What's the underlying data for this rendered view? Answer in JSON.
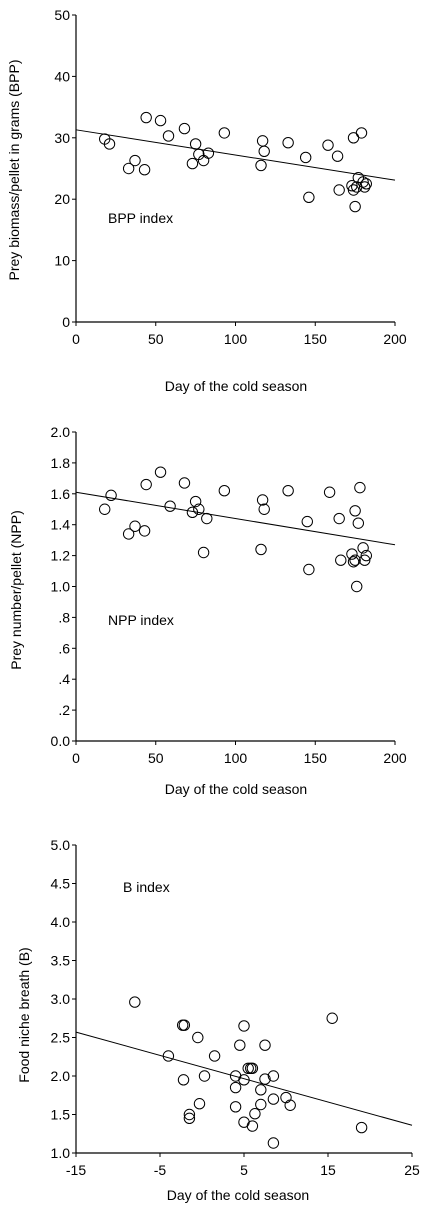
{
  "chart_data": [
    {
      "type": "scatter",
      "annotation": "BPP index",
      "xlabel": "Day of the cold season",
      "ylabel": "Prey biomass/pellet in grams (BPP)",
      "xlim": [
        0,
        200
      ],
      "ylim": [
        0,
        50
      ],
      "x_ticks": [
        "0",
        "50",
        "100",
        "150",
        "200"
      ],
      "y_ticks": [
        "0",
        "10",
        "20",
        "30",
        "40",
        "50"
      ],
      "grid": false,
      "points": [
        {
          "x": 18,
          "y": 29.8
        },
        {
          "x": 21,
          "y": 29.0
        },
        {
          "x": 33,
          "y": 25.0
        },
        {
          "x": 37,
          "y": 26.3
        },
        {
          "x": 43,
          "y": 24.8
        },
        {
          "x": 44,
          "y": 33.3
        },
        {
          "x": 53,
          "y": 32.8
        },
        {
          "x": 58,
          "y": 30.3
        },
        {
          "x": 68,
          "y": 31.5
        },
        {
          "x": 73,
          "y": 25.8
        },
        {
          "x": 75,
          "y": 29.0
        },
        {
          "x": 77,
          "y": 27.3
        },
        {
          "x": 80,
          "y": 26.3
        },
        {
          "x": 83,
          "y": 27.5
        },
        {
          "x": 93,
          "y": 30.8
        },
        {
          "x": 116,
          "y": 25.5
        },
        {
          "x": 117,
          "y": 29.5
        },
        {
          "x": 118,
          "y": 27.8
        },
        {
          "x": 133,
          "y": 29.2
        },
        {
          "x": 144,
          "y": 26.8
        },
        {
          "x": 146,
          "y": 20.3
        },
        {
          "x": 158,
          "y": 28.8
        },
        {
          "x": 164,
          "y": 27.0
        },
        {
          "x": 165,
          "y": 21.5
        },
        {
          "x": 173,
          "y": 22.2
        },
        {
          "x": 174,
          "y": 21.5
        },
        {
          "x": 174,
          "y": 30.0
        },
        {
          "x": 175,
          "y": 18.8
        },
        {
          "x": 176,
          "y": 22.0
        },
        {
          "x": 177,
          "y": 23.5
        },
        {
          "x": 179,
          "y": 30.8
        },
        {
          "x": 180,
          "y": 22.8
        },
        {
          "x": 181,
          "y": 22.0
        },
        {
          "x": 182,
          "y": 22.5
        }
      ],
      "trend_line": {
        "x": [
          0,
          200
        ],
        "y": [
          31.3,
          23.1
        ]
      }
    },
    {
      "type": "scatter",
      "annotation": "NPP index",
      "xlabel": "Day of the cold season",
      "ylabel": "Prey number/pellet (NPP)",
      "xlim": [
        0,
        200
      ],
      "ylim": [
        0,
        2.0
      ],
      "x_ticks": [
        "0",
        "50",
        "100",
        "150",
        "200"
      ],
      "y_ticks": [
        "0.0",
        ".2",
        ".4",
        ".6",
        ".8",
        "1.0",
        "1.2",
        "1.4",
        "1.6",
        "1.8",
        "2.0"
      ],
      "grid": false,
      "points": [
        {
          "x": 18,
          "y": 1.5
        },
        {
          "x": 22,
          "y": 1.59
        },
        {
          "x": 33,
          "y": 1.34
        },
        {
          "x": 37,
          "y": 1.39
        },
        {
          "x": 43,
          "y": 1.36
        },
        {
          "x": 44,
          "y": 1.66
        },
        {
          "x": 53,
          "y": 1.74
        },
        {
          "x": 59,
          "y": 1.52
        },
        {
          "x": 68,
          "y": 1.67
        },
        {
          "x": 73,
          "y": 1.48
        },
        {
          "x": 75,
          "y": 1.55
        },
        {
          "x": 77,
          "y": 1.5
        },
        {
          "x": 80,
          "y": 1.22
        },
        {
          "x": 82,
          "y": 1.44
        },
        {
          "x": 93,
          "y": 1.62
        },
        {
          "x": 116,
          "y": 1.24
        },
        {
          "x": 117,
          "y": 1.56
        },
        {
          "x": 118,
          "y": 1.5
        },
        {
          "x": 133,
          "y": 1.62
        },
        {
          "x": 145,
          "y": 1.42
        },
        {
          "x": 146,
          "y": 1.11
        },
        {
          "x": 159,
          "y": 1.61
        },
        {
          "x": 165,
          "y": 1.44
        },
        {
          "x": 166,
          "y": 1.17
        },
        {
          "x": 173,
          "y": 1.21
        },
        {
          "x": 174,
          "y": 1.16
        },
        {
          "x": 175,
          "y": 1.17
        },
        {
          "x": 175,
          "y": 1.49
        },
        {
          "x": 176,
          "y": 1.0
        },
        {
          "x": 177,
          "y": 1.41
        },
        {
          "x": 178,
          "y": 1.64
        },
        {
          "x": 180,
          "y": 1.25
        },
        {
          "x": 181,
          "y": 1.17
        },
        {
          "x": 182,
          "y": 1.2
        }
      ],
      "trend_line": {
        "x": [
          0,
          200
        ],
        "y": [
          1.61,
          1.27
        ]
      }
    },
    {
      "type": "scatter",
      "annotation": "B index",
      "xlabel": "Day of the cold season",
      "ylabel": "Food niche breath (B)",
      "xlim": [
        -15,
        25
      ],
      "ylim": [
        1.0,
        5.0
      ],
      "x_ticks": [
        "-15",
        "-5",
        "5",
        "15",
        "25"
      ],
      "y_ticks": [
        "1.0",
        "1.5",
        "2.0",
        "2.5",
        "3.0",
        "3.5",
        "4.0",
        "4.5",
        "5.0"
      ],
      "grid": false,
      "points": [
        {
          "x": -8,
          "y": 2.96
        },
        {
          "x": -4,
          "y": 2.26
        },
        {
          "x": -2.2,
          "y": 1.95
        },
        {
          "x": -2.3,
          "y": 2.66
        },
        {
          "x": -2.1,
          "y": 2.66
        },
        {
          "x": -1.5,
          "y": 1.5
        },
        {
          "x": -1.5,
          "y": 1.45
        },
        {
          "x": -0.5,
          "y": 2.5
        },
        {
          "x": -0.3,
          "y": 1.64
        },
        {
          "x": 0.3,
          "y": 2.0
        },
        {
          "x": 1.5,
          "y": 2.26
        },
        {
          "x": 4,
          "y": 1.85
        },
        {
          "x": 4,
          "y": 2.0
        },
        {
          "x": 4,
          "y": 1.6
        },
        {
          "x": 4.5,
          "y": 2.4
        },
        {
          "x": 5,
          "y": 2.65
        },
        {
          "x": 5,
          "y": 1.95
        },
        {
          "x": 5,
          "y": 1.4
        },
        {
          "x": 5.5,
          "y": 2.1
        },
        {
          "x": 5.8,
          "y": 2.1
        },
        {
          "x": 6,
          "y": 1.35
        },
        {
          "x": 6,
          "y": 2.1
        },
        {
          "x": 6.3,
          "y": 1.51
        },
        {
          "x": 7,
          "y": 1.82
        },
        {
          "x": 7,
          "y": 1.63
        },
        {
          "x": 7.5,
          "y": 2.4
        },
        {
          "x": 7.5,
          "y": 1.96
        },
        {
          "x": 8.5,
          "y": 1.13
        },
        {
          "x": 8.5,
          "y": 1.7
        },
        {
          "x": 8.5,
          "y": 2.0
        },
        {
          "x": 10,
          "y": 1.72
        },
        {
          "x": 10.5,
          "y": 1.62
        },
        {
          "x": 15.5,
          "y": 2.75
        },
        {
          "x": 19,
          "y": 1.33
        }
      ],
      "trend_line": {
        "x": [
          -15,
          25
        ],
        "y": [
          2.57,
          1.36
        ]
      }
    }
  ]
}
